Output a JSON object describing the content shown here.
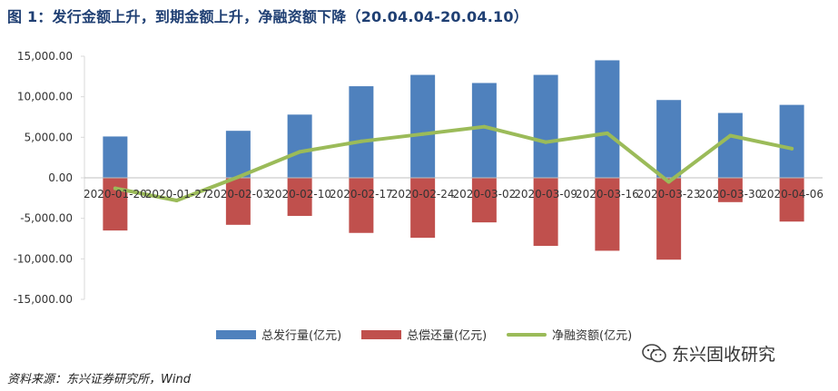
{
  "title": "图 1：发行金额上升，到期金额上升，净融资额下降（20.04.04-20.04.10）",
  "source_note": "资料来源：东兴证券研究所，Wind",
  "watermark": {
    "text": "东兴固收研究",
    "icon": "wechat-icon"
  },
  "colors": {
    "issue": "#4f81bd",
    "repay": "#c0504d",
    "net": "#9bbb59",
    "title": "#1f3f73"
  },
  "chart_data": {
    "type": "bar",
    "title": "",
    "xlabel": "",
    "ylabel": "",
    "ylim": [
      -15000,
      15000
    ],
    "yticks": [
      15000,
      10000,
      5000,
      0,
      -5000,
      -10000,
      -15000
    ],
    "ytick_labels": [
      "15,000.00",
      "10,000.00",
      "5,000.00",
      "0.00",
      "-5,000.00",
      "-10,000.00",
      "-15,000.00"
    ],
    "grid": false,
    "legend_position": "bottom",
    "categories": [
      "2020-01-20",
      "2020-01-27",
      "2020-02-03",
      "2020-02-10",
      "2020-02-17",
      "2020-02-24",
      "2020-03-02",
      "2020-03-09",
      "2020-03-16",
      "2020-03-23",
      "2020-03-30",
      "2020-04-06"
    ],
    "series": [
      {
        "name": "总发行量(亿元)",
        "type": "bar",
        "color": "#4f81bd",
        "values": [
          5100,
          null,
          5800,
          7800,
          11300,
          12700,
          11700,
          12700,
          14500,
          9600,
          8000,
          9000
        ]
      },
      {
        "name": "总偿还量(亿元)",
        "type": "bar",
        "color": "#c0504d",
        "values": [
          -6500,
          null,
          -5800,
          -4700,
          -6800,
          -7400,
          -5500,
          -8400,
          -9000,
          -10100,
          -3000,
          -5400
        ]
      },
      {
        "name": "净融资额(亿元)",
        "type": "line",
        "color": "#9bbb59",
        "values": [
          -1300,
          -2800,
          100,
          3200,
          4500,
          5400,
          6300,
          4400,
          5500,
          -500,
          5200,
          3600
        ]
      }
    ]
  }
}
